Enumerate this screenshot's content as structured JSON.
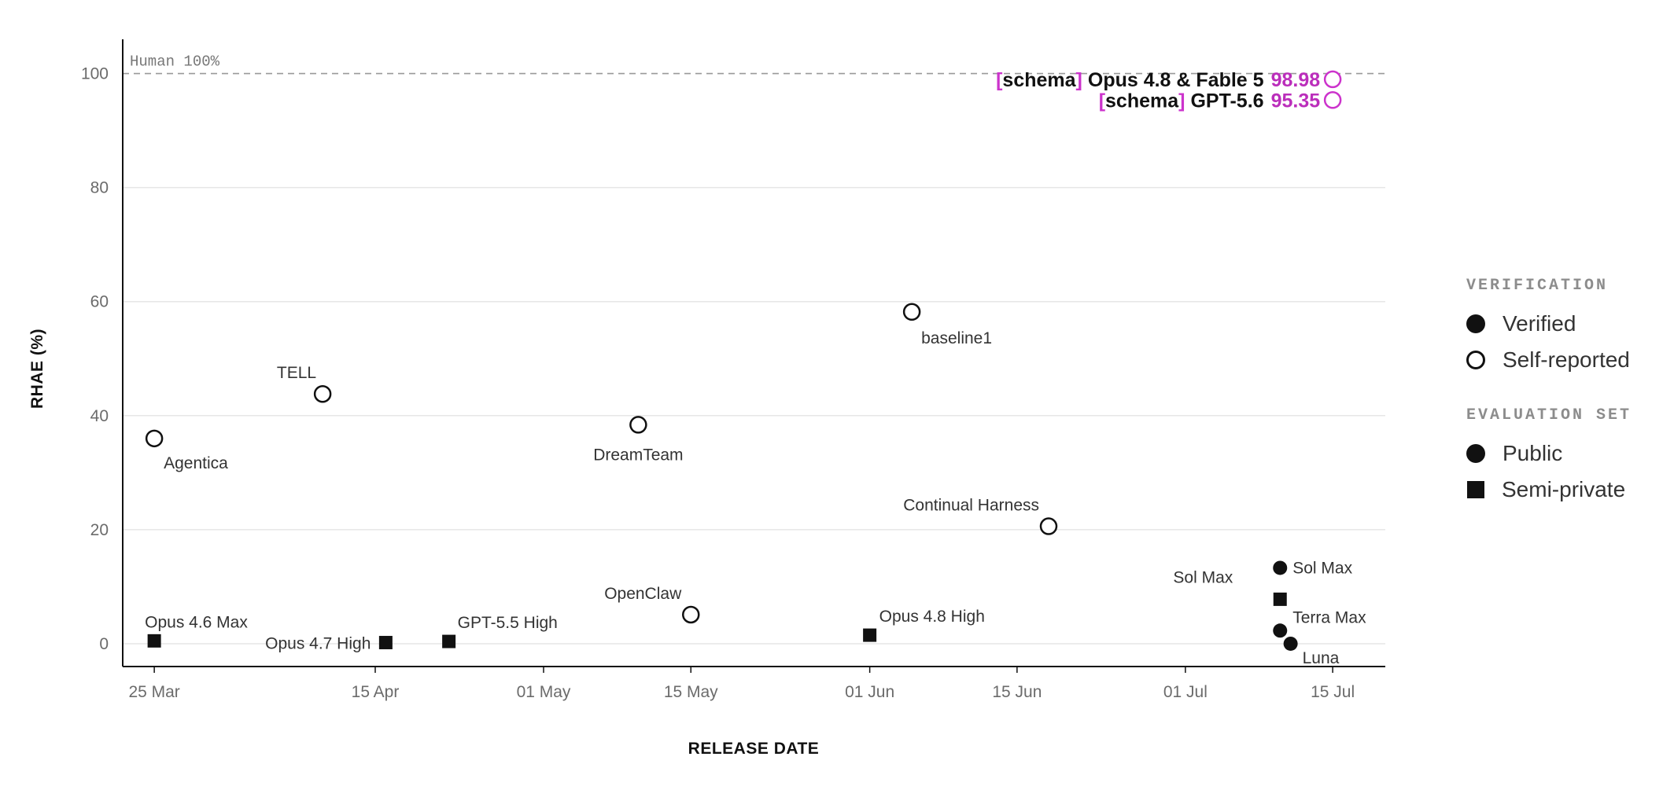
{
  "chart_data": {
    "type": "scatter",
    "title": "",
    "xlabel": "RELEASE DATE",
    "ylabel": "RHAE (%)",
    "ylim": [
      -4,
      106
    ],
    "xlim": [
      "2025-03-22",
      "2025-07-20"
    ],
    "grid": "horizontal",
    "y_ticks": [
      0,
      20,
      40,
      60,
      80,
      100
    ],
    "x_ticks": [
      {
        "date": "2025-03-25",
        "label": "25 Mar"
      },
      {
        "date": "2025-04-15",
        "label": "15 Apr"
      },
      {
        "date": "2025-05-01",
        "label": "01 May"
      },
      {
        "date": "2025-05-15",
        "label": "15 May"
      },
      {
        "date": "2025-06-01",
        "label": "01 Jun"
      },
      {
        "date": "2025-06-15",
        "label": "15 Jun"
      },
      {
        "date": "2025-07-01",
        "label": "01 Jul"
      },
      {
        "date": "2025-07-15",
        "label": "15 Jul"
      }
    ],
    "reference_line": {
      "y": 100,
      "label": "Human 100%"
    },
    "legend_placement": "right",
    "points": [
      {
        "name": "Agentica",
        "date": "2025-03-25",
        "y": 36.0,
        "verification": "Self-reported",
        "set": "Public"
      },
      {
        "name": "TELL",
        "date": "2025-04-10",
        "y": 43.8,
        "verification": "Self-reported",
        "set": "Public"
      },
      {
        "name": "DreamTeam",
        "date": "2025-05-10",
        "y": 38.4,
        "verification": "Self-reported",
        "set": "Public"
      },
      {
        "name": "baseline1",
        "date": "2025-06-05",
        "y": 58.2,
        "verification": "Self-reported",
        "set": "Public"
      },
      {
        "name": "Continual Harness",
        "date": "2025-06-18",
        "y": 20.6,
        "verification": "Self-reported",
        "set": "Public"
      },
      {
        "name": "OpenClaw",
        "date": "2025-05-15",
        "y": 5.1,
        "verification": "Self-reported",
        "set": "Public"
      },
      {
        "name": "Opus 4.6 Max",
        "date": "2025-03-25",
        "y": 0.5,
        "verification": "Verified",
        "set": "Semi-private"
      },
      {
        "name": "Opus 4.7 High",
        "date": "2025-04-16",
        "y": 0.2,
        "verification": "Verified",
        "set": "Semi-private"
      },
      {
        "name": "GPT-5.5 High",
        "date": "2025-04-22",
        "y": 0.4,
        "verification": "Verified",
        "set": "Semi-private"
      },
      {
        "name": "Opus 4.8 High",
        "date": "2025-06-01",
        "y": 1.5,
        "verification": "Verified",
        "set": "Semi-private"
      },
      {
        "name": "Sol Max",
        "date": "2025-07-10",
        "y": 13.3,
        "verification": "Verified",
        "set": "Public"
      },
      {
        "name": "Sol Max",
        "date": "2025-07-10",
        "y": 7.8,
        "verification": "Verified",
        "set": "Semi-private"
      },
      {
        "name": "Terra Max",
        "date": "2025-07-10",
        "y": 2.3,
        "verification": "Verified",
        "set": "Public"
      },
      {
        "name": "Luna",
        "date": "2025-07-11",
        "y": 0.0,
        "verification": "Verified",
        "set": "Public"
      },
      {
        "name": "[schema] Opus 4.8 & Fable 5",
        "date": "2025-07-15",
        "y": 98.98,
        "verification": "Self-reported",
        "set": "Public",
        "highlight": true
      },
      {
        "name": "[schema] GPT-5.6",
        "date": "2025-07-15",
        "y": 95.35,
        "verification": "Self-reported",
        "set": "Public",
        "highlight": true
      }
    ]
  },
  "highlights": [
    {
      "bracket_open": "[",
      "tag": "schema",
      "bracket_close": "]",
      "model": "Opus 4.8 & Fable 5",
      "score": "98.98"
    },
    {
      "bracket_open": "[",
      "tag": "schema",
      "bracket_close": "]",
      "model": "GPT-5.6",
      "score": "95.35"
    }
  ],
  "legend": {
    "verification_heading": "VERIFICATION",
    "verified": "Verified",
    "self_reported": "Self-reported",
    "eval_heading": "EVALUATION SET",
    "public": "Public",
    "semi_private": "Semi-private"
  },
  "colors": {
    "marker": "#111111",
    "highlight": "#cc33cc",
    "grid": "#e6e6e6",
    "reference_line": "#999999"
  }
}
